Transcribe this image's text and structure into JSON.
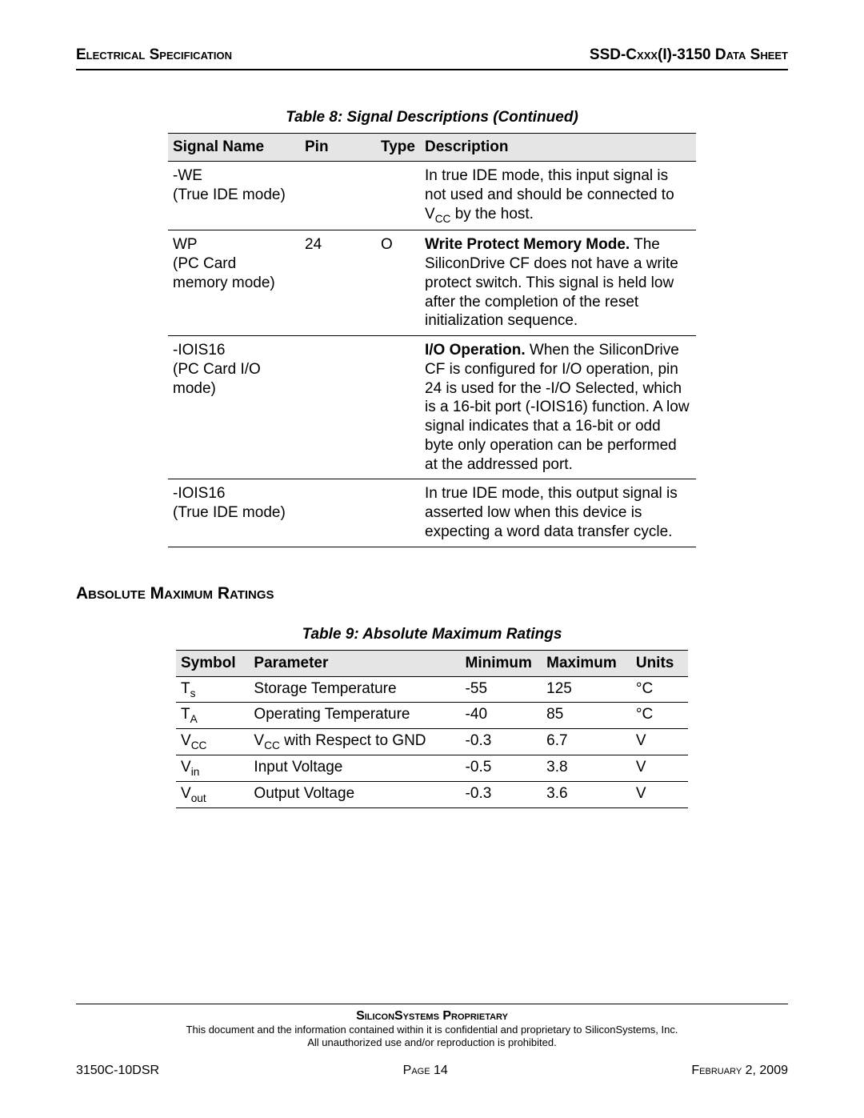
{
  "header": {
    "left": "Electrical Specification",
    "right_prefix": "SSD-C",
    "right_mid": "xxx",
    "right_suffix": "(I)-3150 Data Sheet"
  },
  "table8": {
    "title": "Table 8:  Signal Descriptions  (Continued)",
    "headers": {
      "signal": "Signal Name",
      "pin": "Pin",
      "type": "Type",
      "description": "Description"
    },
    "rows": [
      {
        "signal_line1": "-WE",
        "signal_line2": "(True IDE mode)",
        "pin": "",
        "type": "",
        "desc_pre": "In true IDE mode, this input signal is not used and should be connected to V",
        "desc_sub": "CC",
        "desc_post": " by the host."
      },
      {
        "signal_line1": "WP",
        "signal_line2": "(PC Card memory mode)",
        "pin": "24",
        "type": "O",
        "desc_bold": "Write Protect Memory Mode.",
        "desc_rest": " The SiliconDrive CF does not have a write protect switch. This signal is held low after the completion of the reset initialization sequence."
      },
      {
        "signal_line1": "-IOIS16",
        "signal_line2": "(PC Card I/O mode)",
        "pin": "",
        "type": "",
        "desc_bold": "I/O Operation.",
        "desc_rest": " When the SiliconDrive CF is configured for I/O operation, pin 24 is used for the -I/O Selected, which is a 16-bit port (-IOIS16) function. A low signal indicates that a 16-bit or odd byte only operation can be performed at the addressed port."
      },
      {
        "signal_line1": "-IOIS16",
        "signal_line2": "(True IDE mode)",
        "pin": "",
        "type": "",
        "desc_plain": "In true IDE mode, this output signal is asserted low when this device is expecting a word data transfer cycle."
      }
    ]
  },
  "section_heading": "Absolute Maximum Ratings",
  "table9": {
    "title": "Table 9:  Absolute Maximum Ratings",
    "headers": {
      "symbol": "Symbol",
      "parameter": "Parameter",
      "min": "Minimum",
      "max": "Maximum",
      "units": "Units"
    },
    "rows": [
      {
        "sym_base": "T",
        "sym_sub": "s",
        "param_pre": "Storage Temperature",
        "param_sub": "",
        "param_post": "",
        "min": "-55",
        "max": "125",
        "units": "°C"
      },
      {
        "sym_base": "T",
        "sym_sub": "A",
        "param_pre": "Operating Temperature",
        "param_sub": "",
        "param_post": "",
        "min": "-40",
        "max": "85",
        "units": "°C"
      },
      {
        "sym_base": "V",
        "sym_sub": "CC",
        "param_pre": "V",
        "param_sub": "CC",
        "param_post": " with Respect to GND",
        "min": "-0.3",
        "max": "6.7",
        "units": "V"
      },
      {
        "sym_base": "V",
        "sym_sub": "in",
        "param_pre": "Input Voltage",
        "param_sub": "",
        "param_post": "",
        "min": "-0.5",
        "max": "3.8",
        "units": "V"
      },
      {
        "sym_base": "V",
        "sym_sub": "out",
        "param_pre": "Output Voltage",
        "param_sub": "",
        "param_post": "",
        "min": "-0.3",
        "max": "3.6",
        "units": "V"
      }
    ]
  },
  "footer": {
    "proprietary": "SiliconSystems Proprietary",
    "note1": "This document and the information contained within it is confidential and proprietary to SiliconSystems, Inc.",
    "note2": "All unauthorized use and/or reproduction is prohibited.",
    "left": "3150C-10DSR",
    "mid_prefix": "Page ",
    "mid_num": "14",
    "right": "February 2, 2009"
  }
}
